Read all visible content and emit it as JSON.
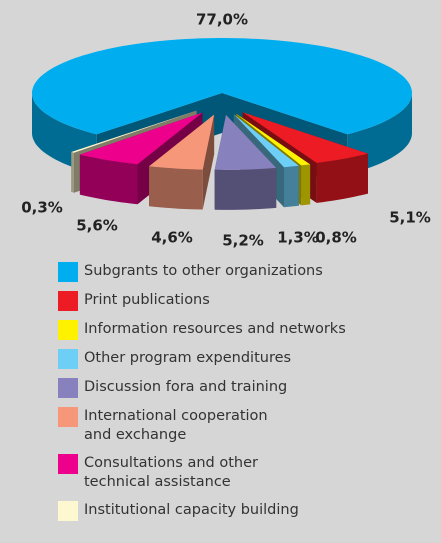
{
  "chart_data": {
    "type": "pie",
    "categories": [
      "Subgrants to other organizations",
      "Print publications",
      "Information resources and networks",
      "Other program expenditures",
      "Discussion fora and training",
      "International cooperation\nand exchange",
      "Consultations and other\ntechnical assistance",
      "Institutional capacity building"
    ],
    "values": [
      77.0,
      5.1,
      0.8,
      1.3,
      5.2,
      4.6,
      5.6,
      0.3
    ],
    "value_labels": [
      "77,0%",
      "5,1%",
      "0,8%",
      "1,3%",
      "5,2%",
      "4,6%",
      "5,6%",
      "0,3%"
    ],
    "colors": [
      "#00aeef",
      "#ed1c24",
      "#fff200",
      "#6dcff6",
      "#8781bd",
      "#f7977a",
      "#ec008c",
      "#fdf8d0"
    ]
  }
}
